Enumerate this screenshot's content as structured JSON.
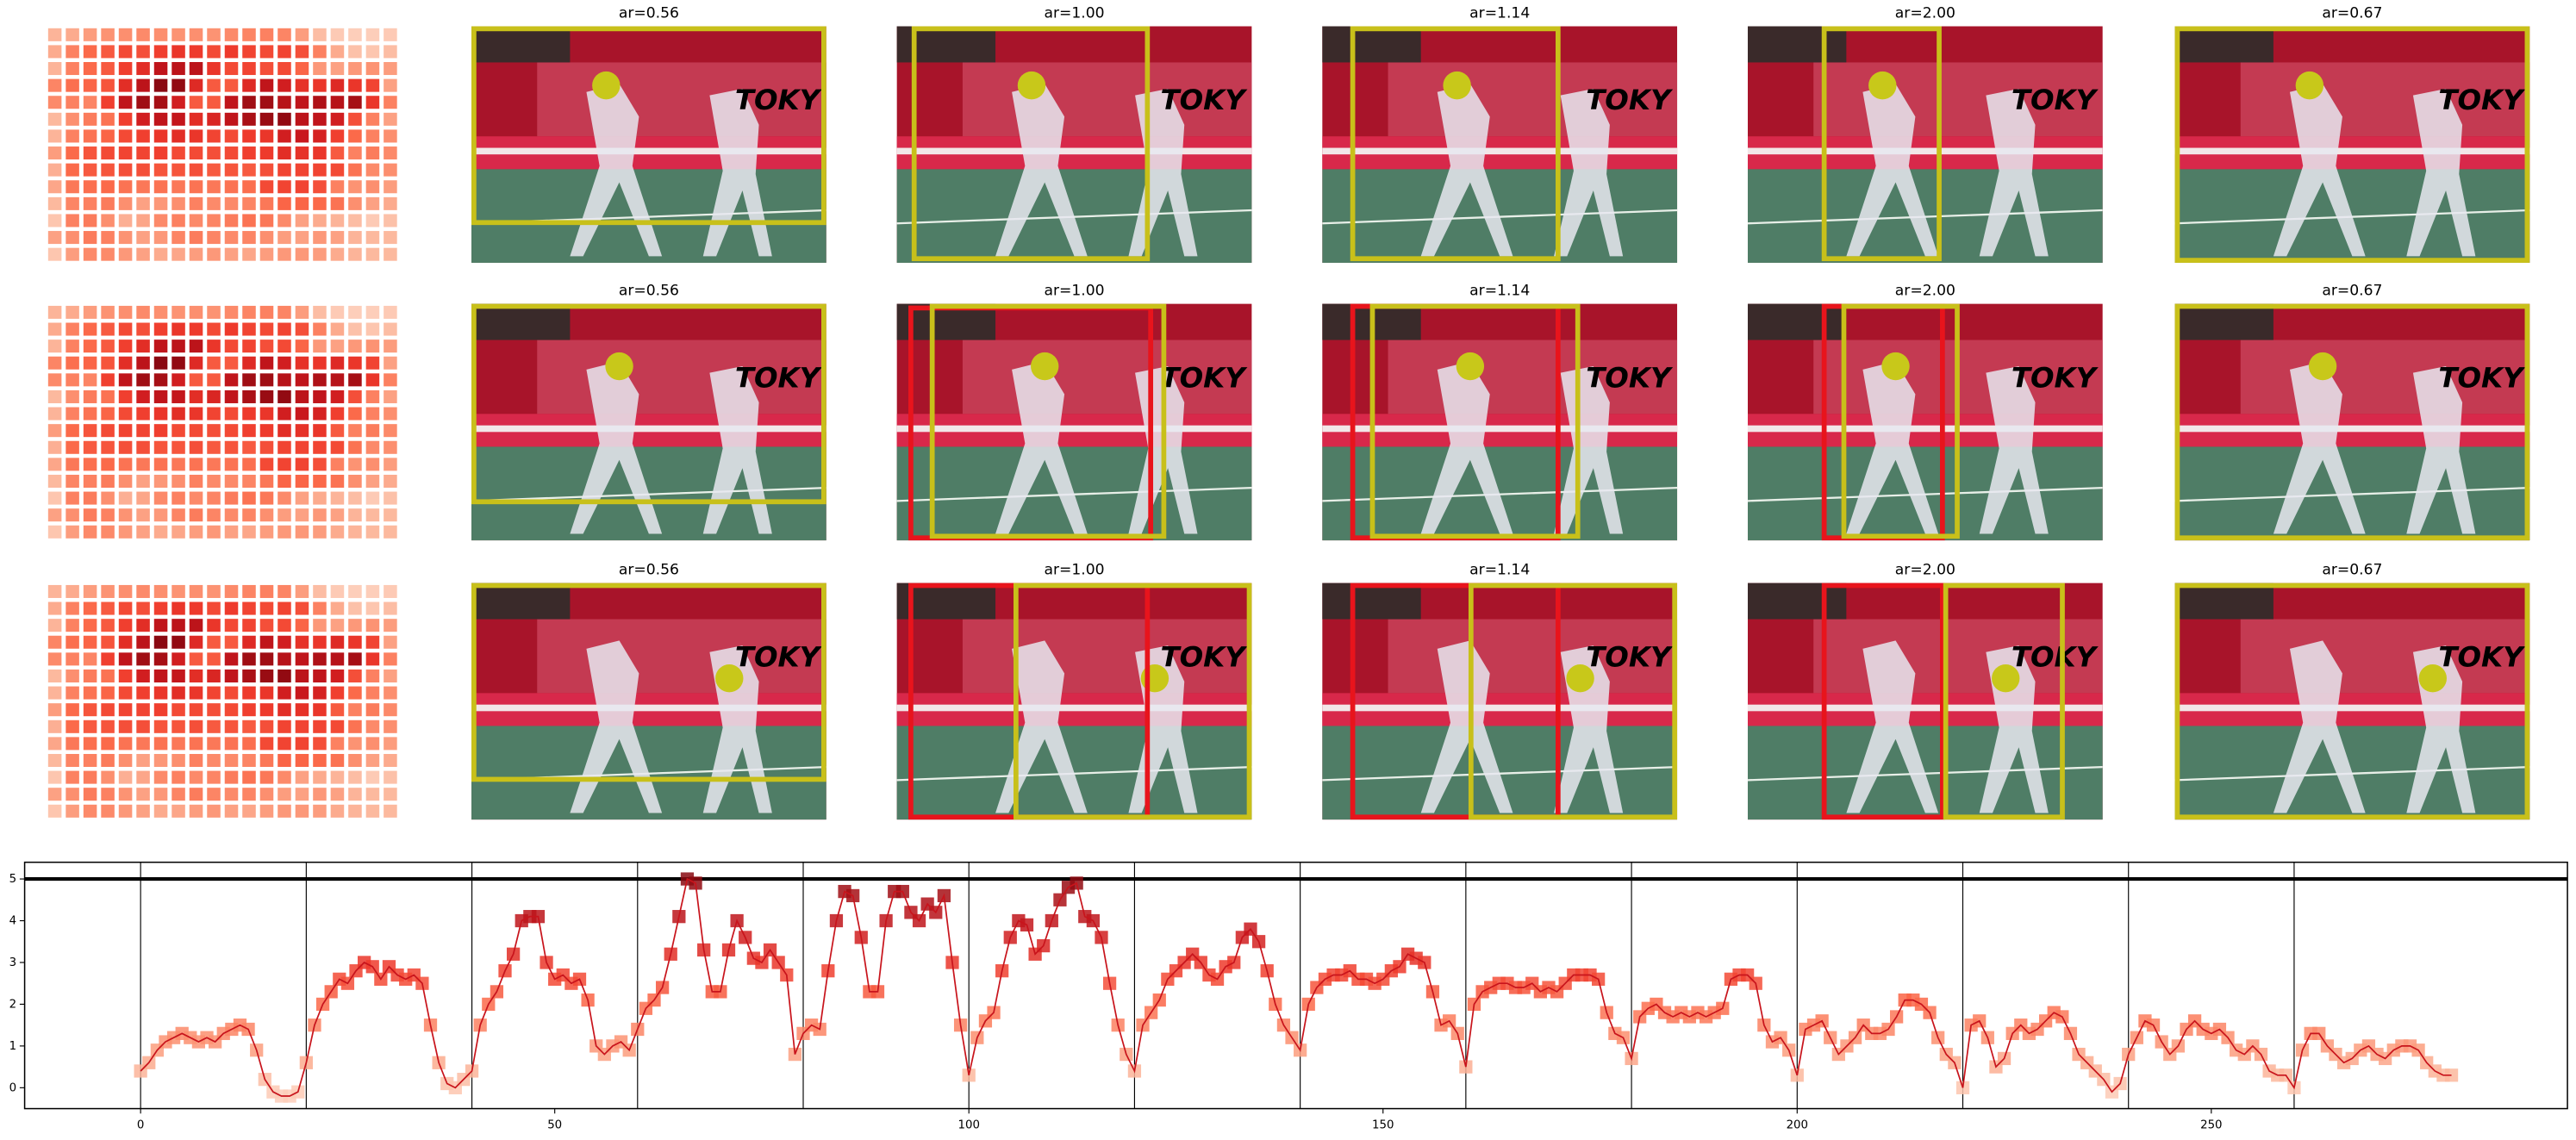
{
  "panel_titles": [
    [
      "ar=0.56",
      "ar=1.00",
      "ar=1.14",
      "ar=2.00",
      "ar=0.67"
    ],
    [
      "ar=0.56",
      "ar=1.00",
      "ar=1.14",
      "ar=2.00",
      "ar=0.67"
    ],
    [
      "ar=0.56",
      "ar=1.00",
      "ar=1.14",
      "ar=2.00",
      "ar=0.67"
    ]
  ],
  "chart_data": {
    "type": "line",
    "color": "#c8141c",
    "x": [
      0,
      1,
      2,
      3,
      4,
      5,
      6,
      7,
      8,
      9,
      10,
      11,
      12,
      13,
      14,
      15,
      16,
      17,
      18,
      19,
      20,
      21,
      22,
      23,
      24,
      25,
      26,
      27,
      28,
      29,
      30,
      31,
      32,
      33,
      34,
      35,
      36,
      37,
      38,
      39,
      40,
      41,
      42,
      43,
      44,
      45,
      46,
      47,
      48,
      49,
      50,
      51,
      52,
      53,
      54,
      55,
      56,
      57,
      58,
      59,
      60,
      61,
      62,
      63,
      64,
      65,
      66,
      67,
      68,
      69,
      70,
      71,
      72,
      73,
      74,
      75,
      76,
      77,
      78,
      79,
      80,
      81,
      82,
      83,
      84,
      85,
      86,
      87,
      88,
      89,
      90,
      91,
      92,
      93,
      94,
      95,
      96,
      97,
      98,
      99,
      100,
      101,
      102,
      103,
      104,
      105,
      106,
      107,
      108,
      109,
      110,
      111,
      112,
      113,
      114,
      115,
      116,
      117,
      118,
      119,
      120,
      121,
      122,
      123,
      124,
      125,
      126,
      127,
      128,
      129,
      130,
      131,
      132,
      133,
      134,
      135,
      136,
      137,
      138,
      139,
      140,
      141,
      142,
      143,
      144,
      145,
      146,
      147,
      148,
      149,
      150,
      151,
      152,
      153,
      154,
      155,
      156,
      157,
      158,
      159,
      160,
      161,
      162,
      163,
      164,
      165,
      166,
      167,
      168,
      169,
      170,
      171,
      172,
      173,
      174,
      175,
      176,
      177,
      178,
      179,
      180,
      181,
      182,
      183,
      184,
      185,
      186,
      187,
      188,
      189,
      190,
      191,
      192,
      193,
      194,
      195,
      196,
      197,
      198,
      199,
      200,
      201,
      202,
      203,
      204,
      205,
      206,
      207,
      208,
      209,
      210,
      211,
      212,
      213,
      214,
      215,
      216,
      217,
      218,
      219,
      220,
      221,
      222,
      223,
      224,
      225,
      226,
      227,
      228,
      229,
      230,
      231,
      232,
      233,
      234,
      235,
      236,
      237,
      238,
      239,
      240,
      241,
      242,
      243,
      244,
      245,
      246,
      247,
      248,
      249,
      250,
      251,
      252,
      253,
      254,
      255,
      256,
      257,
      258,
      259,
      260,
      261,
      262,
      263,
      264,
      265,
      266,
      267,
      268,
      269,
      270,
      271,
      272,
      273,
      274,
      275,
      276,
      277,
      278,
      279
    ],
    "values": [
      0.4,
      0.6,
      0.9,
      1.1,
      1.2,
      1.3,
      1.2,
      1.1,
      1.2,
      1.1,
      1.3,
      1.4,
      1.5,
      1.4,
      0.9,
      0.2,
      -0.1,
      -0.2,
      -0.2,
      -0.1,
      0.6,
      1.5,
      2.0,
      2.3,
      2.6,
      2.5,
      2.8,
      3.0,
      2.9,
      2.6,
      2.9,
      2.7,
      2.6,
      2.7,
      2.5,
      1.5,
      0.6,
      0.1,
      0.0,
      0.2,
      0.4,
      1.5,
      2.0,
      2.3,
      2.8,
      3.2,
      4.0,
      4.1,
      4.1,
      3.0,
      2.6,
      2.7,
      2.5,
      2.6,
      2.1,
      1.0,
      0.8,
      1.0,
      1.1,
      0.9,
      1.4,
      1.9,
      2.1,
      2.4,
      3.2,
      4.1,
      5.0,
      4.9,
      3.3,
      2.3,
      2.3,
      3.3,
      4.0,
      3.6,
      3.1,
      3.0,
      3.3,
      3.0,
      2.7,
      0.8,
      1.3,
      1.5,
      1.4,
      2.8,
      4.0,
      4.7,
      4.6,
      3.6,
      2.3,
      2.3,
      4.0,
      4.7,
      4.7,
      4.2,
      4.0,
      4.4,
      4.2,
      4.6,
      3.0,
      1.5,
      0.3,
      1.2,
      1.6,
      1.8,
      2.8,
      3.6,
      4.0,
      3.9,
      3.2,
      3.4,
      4.0,
      4.5,
      4.8,
      4.9,
      4.1,
      4.0,
      3.6,
      2.5,
      1.5,
      0.8,
      0.4,
      1.5,
      1.8,
      2.1,
      2.6,
      2.8,
      3.0,
      3.2,
      3.0,
      2.7,
      2.6,
      2.9,
      3.0,
      3.6,
      3.8,
      3.5,
      2.8,
      2.0,
      1.5,
      1.2,
      0.9,
      2.0,
      2.4,
      2.6,
      2.7,
      2.7,
      2.8,
      2.6,
      2.6,
      2.5,
      2.6,
      2.8,
      2.9,
      3.2,
      3.1,
      3.0,
      2.3,
      1.5,
      1.6,
      1.3,
      0.5,
      2.0,
      2.3,
      2.4,
      2.5,
      2.5,
      2.4,
      2.4,
      2.5,
      2.3,
      2.4,
      2.3,
      2.5,
      2.7,
      2.7,
      2.7,
      2.6,
      1.8,
      1.3,
      1.2,
      0.7,
      1.7,
      1.9,
      2.0,
      1.8,
      1.7,
      1.8,
      1.7,
      1.8,
      1.7,
      1.8,
      1.9,
      2.6,
      2.7,
      2.7,
      2.5,
      1.5,
      1.1,
      1.2,
      0.9,
      0.3,
      1.4,
      1.5,
      1.6,
      1.2,
      0.8,
      1.0,
      1.2,
      1.5,
      1.3,
      1.3,
      1.4,
      1.7,
      2.1,
      2.1,
      2.0,
      1.8,
      1.2,
      0.8,
      0.6,
      0.0,
      1.5,
      1.6,
      1.2,
      0.5,
      0.7,
      1.3,
      1.5,
      1.3,
      1.4,
      1.6,
      1.8,
      1.7,
      1.3,
      0.8,
      0.6,
      0.4,
      0.2,
      -0.1,
      0.1,
      0.8,
      1.2,
      1.6,
      1.5,
      1.1,
      0.8,
      1.0,
      1.4,
      1.6,
      1.4,
      1.3,
      1.4,
      1.2,
      0.9,
      0.8,
      1.0,
      0.8,
      0.4,
      0.3,
      0.3,
      0.0,
      0.9,
      1.3,
      1.3,
      1.0,
      0.8,
      0.6,
      0.7,
      0.9,
      1.0,
      0.8,
      0.7,
      0.9,
      1.0,
      1.0,
      0.9,
      0.6,
      0.4,
      0.3,
      0.3
    ],
    "xlim": [
      -14,
      293
    ],
    "xticks": [
      0,
      50,
      100,
      150,
      200,
      250
    ],
    "ylim": [
      -0.5,
      5.4
    ],
    "yticks": [
      0,
      1,
      2,
      3,
      4,
      5
    ],
    "vlines": [
      0,
      20,
      40,
      60,
      80,
      100,
      120,
      140,
      160,
      180,
      200,
      220,
      240,
      260
    ],
    "hline": 5
  }
}
